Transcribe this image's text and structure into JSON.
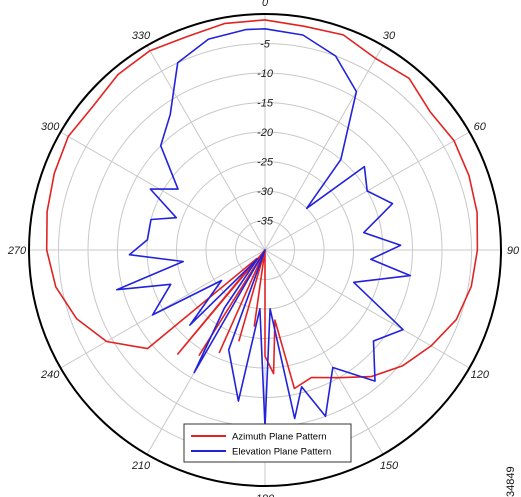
{
  "chart_data": {
    "type": "polar-line",
    "title": "",
    "radial_unit": "dB",
    "radial_range": [
      -40,
      0
    ],
    "ring_values": [
      -35,
      -30,
      -25,
      -20,
      -15,
      -10,
      -5
    ],
    "ring_labels": [
      "-35",
      "-30",
      "-25",
      "-20",
      "-15",
      "-10",
      "-5"
    ],
    "angle_labels": [
      "0",
      "30",
      "60",
      "90",
      "120",
      "150",
      "180",
      "210",
      "240",
      "270",
      "300",
      "330"
    ],
    "angle_direction": "clockwise",
    "zero_direction": "top",
    "legend_position": "bottom-center",
    "series": [
      {
        "name": "Azimuth Plane Pattern",
        "color": "#e32222",
        "points": [
          [
            0,
            -1
          ],
          [
            10,
            -1.5
          ],
          [
            20,
            -1.2
          ],
          [
            30,
            -2.5
          ],
          [
            40,
            -2.0
          ],
          [
            50,
            -3.5
          ],
          [
            60,
            -3.0
          ],
          [
            70,
            -3.2
          ],
          [
            80,
            -3.5
          ],
          [
            90,
            -4.0
          ],
          [
            100,
            -4.5
          ],
          [
            110,
            -5.5
          ],
          [
            120,
            -7.5
          ],
          [
            130,
            -9.5
          ],
          [
            140,
            -12
          ],
          [
            150,
            -15
          ],
          [
            160,
            -17
          ],
          [
            168,
            -16
          ],
          [
            172,
            -28
          ],
          [
            176,
            -19
          ],
          [
            180,
            -22
          ],
          [
            184,
            -40
          ],
          [
            188,
            -27
          ],
          [
            192,
            -40
          ],
          [
            196,
            -24
          ],
          [
            200,
            -40
          ],
          [
            204,
            -21
          ],
          [
            208,
            -40
          ],
          [
            212,
            -19
          ],
          [
            216,
            -40
          ],
          [
            220,
            -17
          ],
          [
            224,
            -38
          ],
          [
            230,
            -14
          ],
          [
            240,
            -9
          ],
          [
            250,
            -6
          ],
          [
            260,
            -4
          ],
          [
            270,
            -3
          ],
          [
            280,
            -2.5
          ],
          [
            290,
            -2
          ],
          [
            300,
            -1.5
          ],
          [
            310,
            -2
          ],
          [
            320,
            -1.2
          ],
          [
            330,
            -1
          ],
          [
            340,
            -1.5
          ],
          [
            350,
            -1
          ],
          [
            360,
            -1
          ]
        ]
      },
      {
        "name": "Elevation Plane Pattern",
        "color": "#2222dd",
        "points": [
          [
            0,
            -2.5
          ],
          [
            10,
            -3
          ],
          [
            20,
            -5
          ],
          [
            30,
            -9
          ],
          [
            40,
            -20
          ],
          [
            45,
            -30
          ],
          [
            50,
            -18
          ],
          [
            60,
            -20
          ],
          [
            70,
            -17
          ],
          [
            80,
            -23
          ],
          [
            88,
            -17
          ],
          [
            95,
            -22
          ],
          [
            100,
            -15
          ],
          [
            110,
            -24
          ],
          [
            120,
            -13
          ],
          [
            130,
            -16
          ],
          [
            140,
            -11
          ],
          [
            150,
            -17
          ],
          [
            160,
            -10
          ],
          [
            165,
            -16
          ],
          [
            170,
            -11
          ],
          [
            175,
            -30
          ],
          [
            180,
            -10
          ],
          [
            185,
            -30
          ],
          [
            190,
            -14
          ],
          [
            200,
            -22
          ],
          [
            205,
            -40
          ],
          [
            210,
            -16
          ],
          [
            215,
            -28
          ],
          [
            220,
            -38
          ],
          [
            225,
            -22
          ],
          [
            235,
            -31
          ],
          [
            240,
            -18
          ],
          [
            250,
            -23
          ],
          [
            255,
            -14
          ],
          [
            262,
            -26
          ],
          [
            268,
            -17
          ],
          [
            275,
            -20
          ],
          [
            285,
            -20
          ],
          [
            290,
            -24
          ],
          [
            298,
            -18
          ],
          [
            305,
            -22
          ],
          [
            315,
            -15
          ],
          [
            325,
            -12
          ],
          [
            335,
            -5
          ],
          [
            345,
            -3
          ],
          [
            355,
            -2.5
          ],
          [
            360,
            -2.5
          ]
        ]
      }
    ]
  },
  "figure_id": "34849"
}
